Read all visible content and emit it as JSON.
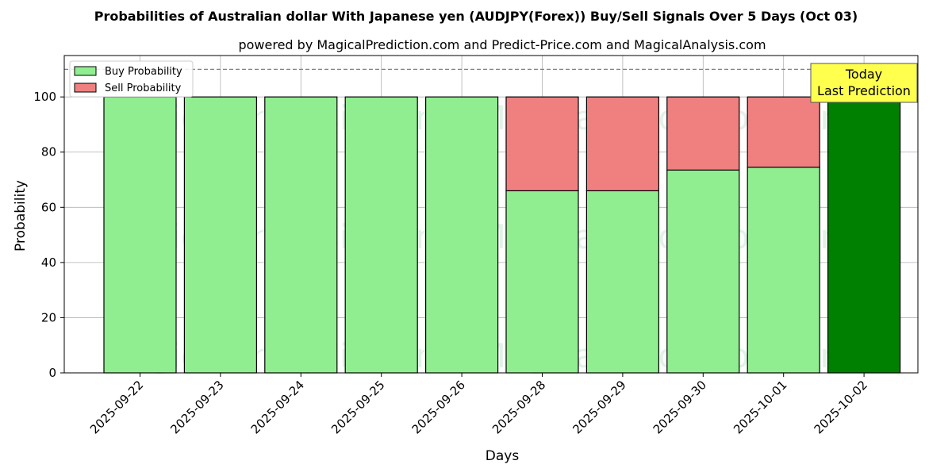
{
  "chart_data": {
    "type": "bar",
    "stacked": true,
    "title": "Probabilities of Australian dollar With Japanese yen (AUDJPY(Forex)) Buy/Sell Signals Over 5 Days (Oct 03)",
    "subtitle": "powered by MagicalPrediction.com and Predict-Price.com and MagicalAnalysis.com",
    "xlabel": "Days",
    "ylabel": "Probability",
    "ylim": [
      0,
      115
    ],
    "yticks": [
      0,
      20,
      40,
      60,
      80,
      100
    ],
    "grid": true,
    "legend_position": "top-left",
    "reference_line": 110,
    "categories": [
      "2025-09-22",
      "2025-09-23",
      "2025-09-24",
      "2025-09-25",
      "2025-09-26",
      "2025-09-28",
      "2025-09-29",
      "2025-09-30",
      "2025-10-01",
      "2025-10-02"
    ],
    "series": [
      {
        "name": "Buy Probability",
        "color": "#90ee90",
        "values": [
          100,
          100,
          100,
          100,
          100,
          66,
          66,
          73.5,
          74.5,
          100
        ]
      },
      {
        "name": "Sell Probability",
        "color": "#f08080",
        "values": [
          0,
          0,
          0,
          0,
          0,
          34,
          34,
          26.5,
          25.5,
          0
        ]
      }
    ],
    "highlight": {
      "index": 9,
      "color": "#008000"
    },
    "annotation": {
      "lines": [
        "Today",
        "Last Prediction"
      ],
      "background": "#ffff4d"
    },
    "watermarks": [
      "MagicalAnalysis.com",
      "MagicalPrediction.com"
    ]
  }
}
